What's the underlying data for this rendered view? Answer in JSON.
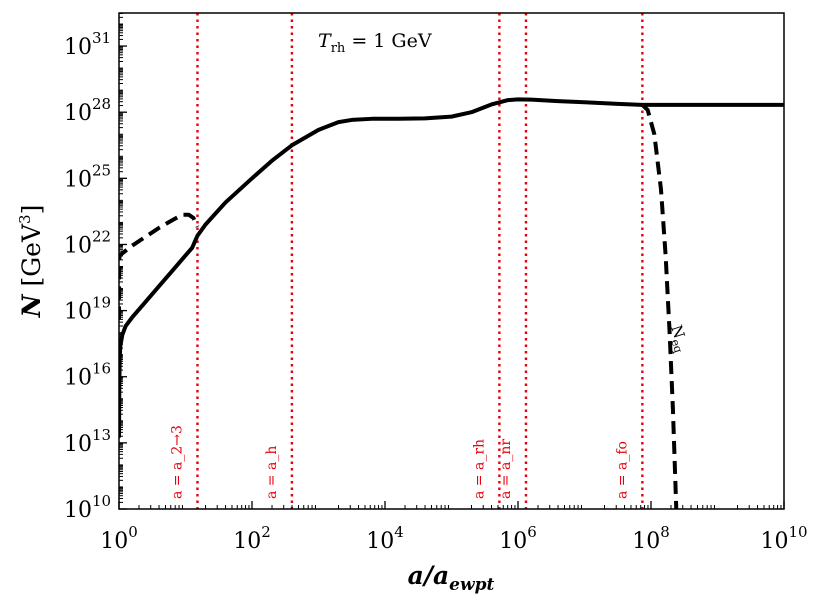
{
  "chart_data": {
    "type": "line",
    "title": "T_rh = 1 GeV",
    "title_parts": {
      "symbol": "T",
      "subscript": "rh",
      "rest": " = 1 GeV"
    },
    "xlabel": "a/a_ewpt",
    "ylabel": "N [GeV^3]",
    "x_scale": "log",
    "y_scale": "log",
    "xlim_log10": [
      0,
      10
    ],
    "ylim_log10": [
      10,
      32.5
    ],
    "x_ticks": [
      {
        "exp": 0,
        "base": "10",
        "sup": "0"
      },
      {
        "exp": 2,
        "base": "10",
        "sup": "2"
      },
      {
        "exp": 4,
        "base": "10",
        "sup": "4"
      },
      {
        "exp": 6,
        "base": "10",
        "sup": "6"
      },
      {
        "exp": 8,
        "base": "10",
        "sup": "8"
      },
      {
        "exp": 10,
        "base": "10",
        "sup": "10"
      }
    ],
    "y_ticks": [
      {
        "exp": 10,
        "base": "10",
        "sup": "10"
      },
      {
        "exp": 13,
        "base": "10",
        "sup": "13"
      },
      {
        "exp": 16,
        "base": "10",
        "sup": "16"
      },
      {
        "exp": 19,
        "base": "10",
        "sup": "19"
      },
      {
        "exp": 22,
        "base": "10",
        "sup": "22"
      },
      {
        "exp": 25,
        "base": "10",
        "sup": "25"
      },
      {
        "exp": 28,
        "base": "10",
        "sup": "28"
      },
      {
        "exp": 31,
        "base": "10",
        "sup": "31"
      }
    ],
    "vlines": [
      {
        "name": "a_2to3",
        "x_log10": 1.18,
        "label": "a = a_2→3"
      },
      {
        "name": "a_h",
        "x_log10": 2.6,
        "label": "a = a_h"
      },
      {
        "name": "a_rh",
        "x_log10": 5.72,
        "label": "a = a_rh"
      },
      {
        "name": "a_nr",
        "x_log10": 6.12,
        "label": "a = a_nr"
      },
      {
        "name": "a_fo",
        "x_log10": 7.87,
        "label": "a = a_fo"
      }
    ],
    "series": [
      {
        "name": "N",
        "style": "solid",
        "log10_x": [
          0.0,
          0.005,
          0.01,
          0.02,
          0.05,
          0.1,
          0.2,
          0.4,
          0.6,
          0.8,
          1.0,
          1.1,
          1.18,
          1.3,
          1.6,
          2.0,
          2.3,
          2.6,
          3.0,
          3.3,
          3.5,
          3.8,
          4.2,
          4.6,
          5.0,
          5.3,
          5.6,
          5.85,
          6.0,
          6.2,
          6.6,
          7.0,
          7.5,
          7.87,
          8.5,
          9.0,
          10.0
        ],
        "log10_y": [
          13.3,
          15.5,
          16.8,
          17.4,
          17.9,
          18.3,
          18.7,
          19.4,
          20.1,
          20.8,
          21.5,
          21.85,
          22.4,
          22.9,
          23.9,
          25.0,
          25.8,
          26.5,
          27.2,
          27.55,
          27.65,
          27.7,
          27.7,
          27.72,
          27.8,
          28.0,
          28.35,
          28.55,
          28.58,
          28.57,
          28.5,
          28.45,
          28.38,
          28.33,
          28.33,
          28.33,
          28.33
        ]
      },
      {
        "name": "N_eq",
        "style": "dashed",
        "label": "N_eq",
        "log10_x": [
          0.0,
          0.003,
          0.01,
          0.05,
          0.2,
          0.4,
          0.6,
          0.8,
          0.95,
          1.05,
          1.12,
          1.18,
          7.87,
          7.95,
          8.05,
          8.15,
          8.22,
          8.28,
          8.33,
          8.38
        ],
        "log10_y": [
          18.6,
          21.3,
          21.5,
          21.6,
          21.95,
          22.35,
          22.75,
          23.1,
          23.35,
          23.35,
          23.2,
          22.8,
          28.33,
          28.1,
          27.0,
          24.5,
          21.5,
          18.0,
          14.5,
          10.0
        ]
      }
    ]
  }
}
